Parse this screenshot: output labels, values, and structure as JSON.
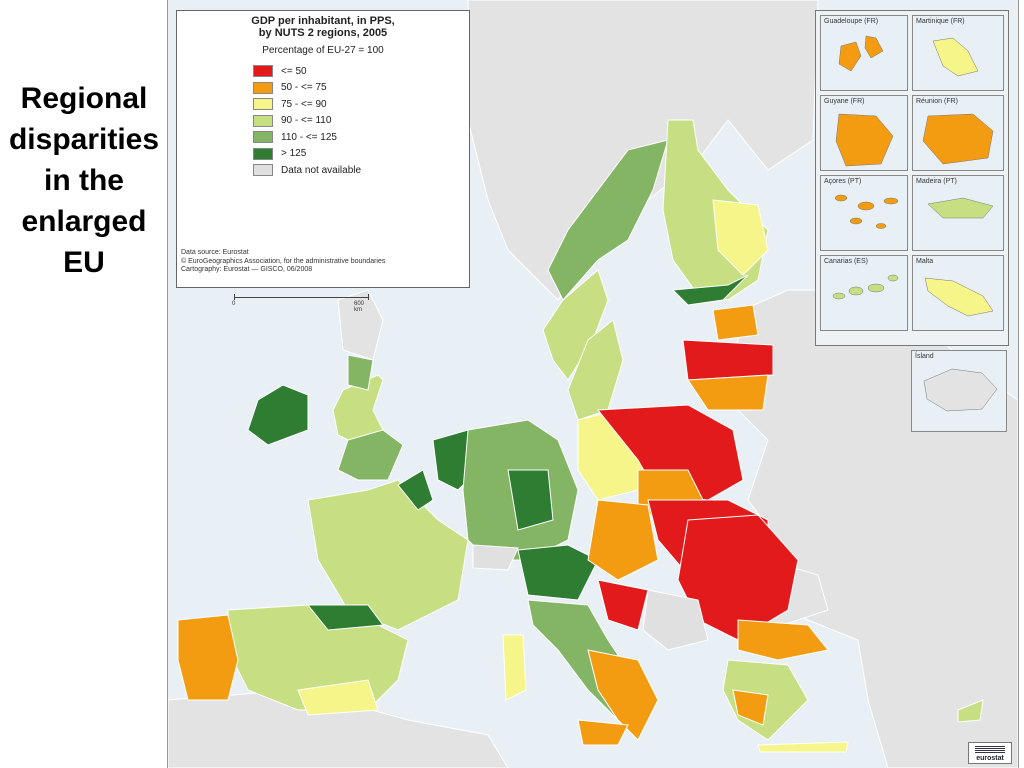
{
  "slide": {
    "title_lines": [
      "Regional",
      "disparities",
      "in the",
      "enlarged",
      "EU"
    ]
  },
  "map": {
    "title_lines": [
      "GDP per inhabitant, in PPS,",
      "by NUTS 2 regions, 2005"
    ],
    "subtitle": "Percentage of EU-27 = 100",
    "legend": [
      {
        "label": "<= 50",
        "color": "#e31a1c"
      },
      {
        "label": "50 - <= 75",
        "color": "#f39c12"
      },
      {
        "label": "75 - <= 90",
        "color": "#f5f58a"
      },
      {
        "label": "90 - <= 110",
        "color": "#c6df82"
      },
      {
        "label": "110 - <= 125",
        "color": "#84b565"
      },
      {
        "label": "> 125",
        "color": "#2e7d32"
      },
      {
        "label": "Data not available",
        "color": "#e0e0e0"
      }
    ],
    "source_lines": [
      "Data source: Eurostat",
      "© EuroGeographics Association, for the administrative boundaries",
      "Cartography: Eurostat — GISCO, 06/2008"
    ],
    "scale": {
      "start": "0",
      "end": "600 km"
    },
    "insets": [
      {
        "title": "Guadeloupe (FR)",
        "scale_a": "0",
        "scale_b": "25"
      },
      {
        "title": "Martinique (FR)",
        "scale_a": "0",
        "scale_b": "20"
      },
      {
        "title": "Guyane (FR)",
        "scale_a": "0",
        "scale_b": "100"
      },
      {
        "title": "Réunion (FR)",
        "scale_a": "0",
        "scale_b": "20"
      },
      {
        "title": "Açores (PT)",
        "scale_a": "0",
        "scale_b": "100"
      },
      {
        "title": "Madeira (PT)",
        "scale_a": "0",
        "scale_b": "20"
      },
      {
        "title": "Canarias (ES)",
        "scale_a": "0",
        "scale_b": "100"
      },
      {
        "title": "Malta",
        "scale_a": "0",
        "scale_b": "10"
      }
    ],
    "iceland": {
      "title": "Ísland",
      "scale_a": "0",
      "scale_b": "100"
    },
    "logo_text": "eurostat",
    "colors": {
      "sea": "#e8f0f6",
      "non_eu_land": "#e3e3e3",
      "border": "#ffffff"
    }
  }
}
